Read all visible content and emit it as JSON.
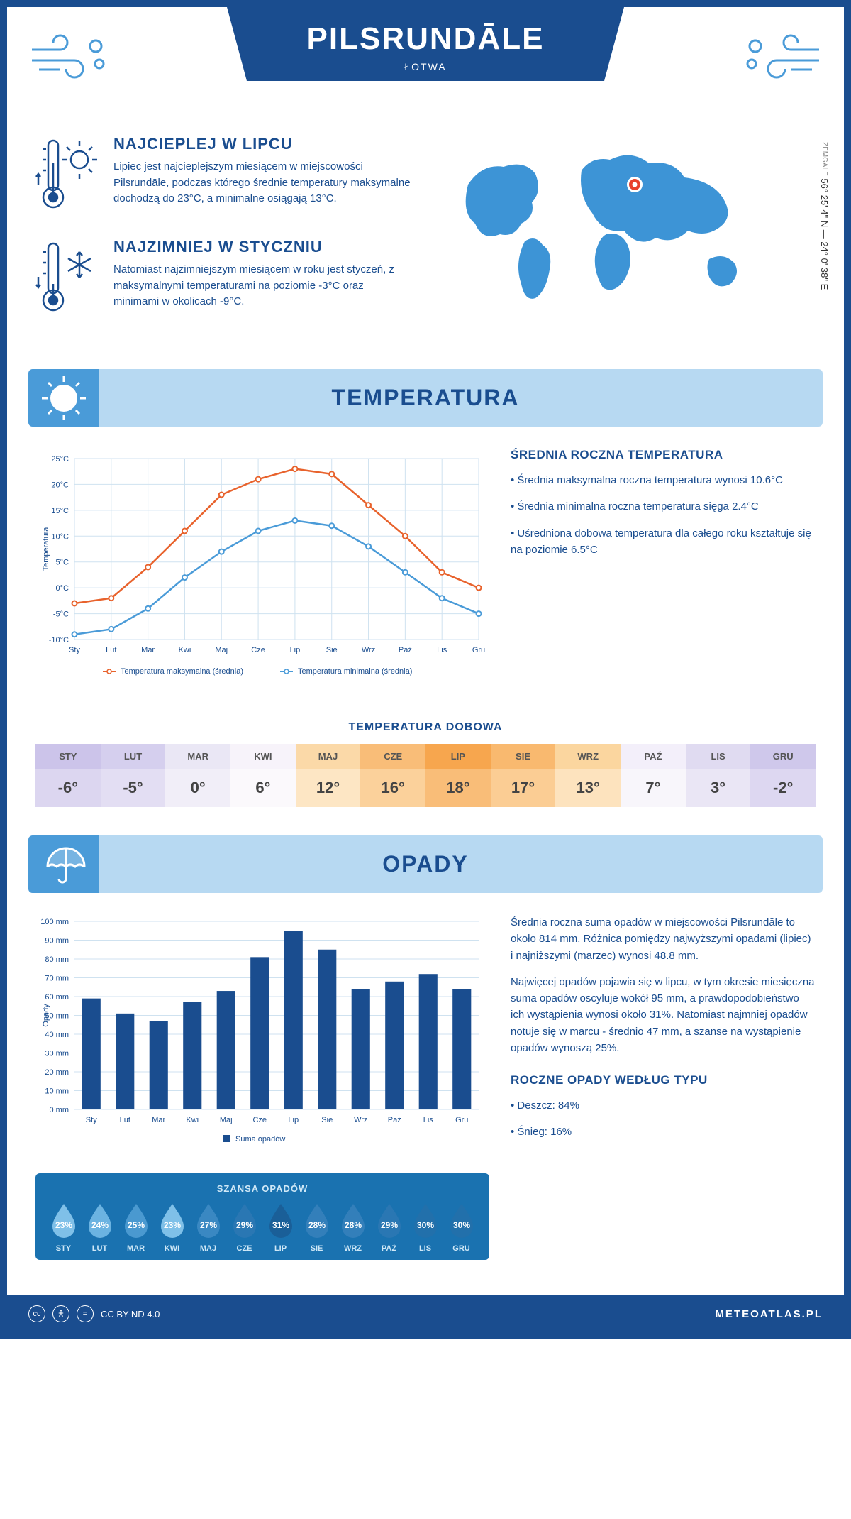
{
  "header": {
    "title": "PILSRUNDĀLE",
    "subtitle": "ŁOTWA"
  },
  "coords": {
    "lat": "56° 25' 4\" N — 24° 0' 38\" E",
    "region": "ZEMGALE"
  },
  "facts": {
    "hot": {
      "title": "NAJCIEPLEJ W LIPCU",
      "text": "Lipiec jest najcieplejszym miesiącem w miejscowości Pilsrundāle, podczas którego średnie temperatury maksymalne dochodzą do 23°C, a minimalne osiągają 13°C."
    },
    "cold": {
      "title": "NAJZIMNIEJ W STYCZNIU",
      "text": "Natomiast najzimniejszym miesiącem w roku jest styczeń, z maksymalnymi temperaturami na poziomie -3°C oraz minimami w okolicach -9°C."
    }
  },
  "section_temp": {
    "title": "TEMPERATURA"
  },
  "section_precip": {
    "title": "OPADY"
  },
  "temp_chart": {
    "type": "line",
    "months": [
      "Sty",
      "Lut",
      "Mar",
      "Kwi",
      "Maj",
      "Cze",
      "Lip",
      "Sie",
      "Wrz",
      "Paź",
      "Lis",
      "Gru"
    ],
    "max_series": [
      -3,
      -2,
      4,
      11,
      18,
      21,
      23,
      22,
      16,
      10,
      3,
      0
    ],
    "min_series": [
      -9,
      -8,
      -4,
      2,
      7,
      11,
      13,
      12,
      8,
      3,
      -2,
      -5
    ],
    "max_color": "#e8622c",
    "min_color": "#4a9bd8",
    "ylim": [
      -10,
      25
    ],
    "ytick_step": 5,
    "ylabel": "Temperatura",
    "grid_color": "#cfe2f0",
    "legend_max": "Temperatura maksymalna (średnia)",
    "legend_min": "Temperatura minimalna (średnia)"
  },
  "temp_text": {
    "title": "ŚREDNIA ROCZNA TEMPERATURA",
    "b1": "• Średnia maksymalna roczna temperatura wynosi 10.6°C",
    "b2": "• Średnia minimalna roczna temperatura sięga 2.4°C",
    "b3": "• Uśredniona dobowa temperatura dla całego roku kształtuje się na poziomie 6.5°C"
  },
  "daily": {
    "title": "TEMPERATURA DOBOWA",
    "months": [
      "STY",
      "LUT",
      "MAR",
      "KWI",
      "MAJ",
      "CZE",
      "LIP",
      "SIE",
      "WRZ",
      "PAŹ",
      "LIS",
      "GRU"
    ],
    "values": [
      "-6°",
      "-5°",
      "0°",
      "6°",
      "12°",
      "16°",
      "18°",
      "17°",
      "13°",
      "7°",
      "3°",
      "-2°"
    ],
    "head_colors": [
      "#ccc4ea",
      "#d5cfee",
      "#eae7f5",
      "#f7f3fa",
      "#fbd9a8",
      "#f9bd78",
      "#f7a64e",
      "#f9b96f",
      "#fbd69f",
      "#f3effa",
      "#e0dbf1",
      "#cfc8eb"
    ],
    "val_colors": [
      "#dcd6f0",
      "#e3def3",
      "#f1eef8",
      "#fbf9fc",
      "#fde6c4",
      "#fbd19b",
      "#f9bd78",
      "#fbcd94",
      "#fde3be",
      "#f8f6fb",
      "#eae6f5",
      "#ddd7f1"
    ]
  },
  "precip_chart": {
    "type": "bar",
    "months": [
      "Sty",
      "Lut",
      "Mar",
      "Kwi",
      "Maj",
      "Cze",
      "Lip",
      "Sie",
      "Wrz",
      "Paź",
      "Lis",
      "Gru"
    ],
    "values": [
      59,
      51,
      47,
      57,
      63,
      81,
      95,
      85,
      64,
      68,
      72,
      64
    ],
    "bar_color": "#1a4d8f",
    "ylim": [
      0,
      100
    ],
    "ytick_step": 10,
    "ylabel": "Opady",
    "grid_color": "#cfe2f0",
    "legend": "Suma opadów"
  },
  "precip_text": {
    "p1": "Średnia roczna suma opadów w miejscowości Pilsrundāle to około 814 mm. Różnica pomiędzy najwyższymi opadami (lipiec) i najniższymi (marzec) wynosi 48.8 mm.",
    "p2": "Najwięcej opadów pojawia się w lipcu, w tym okresie miesięczna suma opadów oscyluje wokół 95 mm, a prawdopodobieństwo ich wystąpienia wynosi około 31%. Natomiast najmniej opadów notuje się w marcu - średnio 47 mm, a szanse na wystąpienie opadów wynoszą 25%.",
    "type_title": "ROCZNE OPADY WEDŁUG TYPU",
    "type_b1": "• Deszcz: 84%",
    "type_b2": "• Śnieg: 16%"
  },
  "chance": {
    "title": "SZANSA OPADÓW",
    "months": [
      "STY",
      "LUT",
      "MAR",
      "KWI",
      "MAJ",
      "CZE",
      "LIP",
      "SIE",
      "WRZ",
      "PAŹ",
      "LIS",
      "GRU"
    ],
    "values": [
      "23%",
      "24%",
      "25%",
      "23%",
      "27%",
      "29%",
      "31%",
      "28%",
      "28%",
      "29%",
      "30%",
      "30%"
    ],
    "colors": [
      "#7fc0e8",
      "#6bb3e1",
      "#4a99d0",
      "#7fc0e8",
      "#3a88c2",
      "#2a77b3",
      "#1a5f98",
      "#337fba",
      "#337fba",
      "#2a77b3",
      "#2270ab",
      "#2270ab"
    ]
  },
  "footer": {
    "license": "CC BY-ND 4.0",
    "site": "METEOATLAS.PL"
  }
}
